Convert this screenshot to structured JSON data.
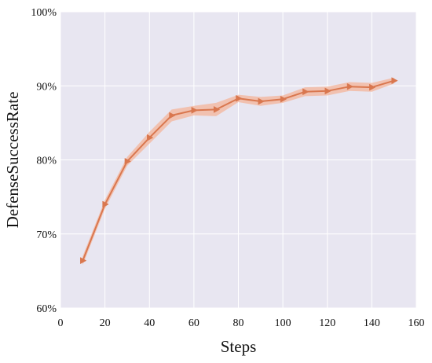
{
  "chart_data": {
    "type": "line",
    "xlabel": "Steps",
    "ylabel": "DefenseSuccessRate",
    "xlim": [
      0,
      160
    ],
    "ylim": [
      60,
      100
    ],
    "x_ticks": [
      0,
      20,
      40,
      60,
      80,
      100,
      120,
      140,
      160
    ],
    "x_tick_labels": [
      "0",
      "20",
      "40",
      "60",
      "80",
      "100",
      "120",
      "140",
      "160"
    ],
    "y_ticks": [
      60,
      70,
      80,
      90,
      100
    ],
    "y_tick_labels": [
      "60%",
      "70%",
      "80%",
      "90%",
      "100%"
    ],
    "grid": true,
    "legend": "none",
    "series": [
      {
        "x": [
          10,
          20,
          30,
          40,
          50,
          60,
          70,
          80,
          90,
          100,
          110,
          120,
          130,
          140,
          150
        ],
        "values": [
          66.4,
          74.0,
          79.8,
          83.0,
          86.0,
          86.7,
          86.8,
          88.3,
          87.9,
          88.2,
          89.2,
          89.3,
          89.9,
          89.8,
          90.7
        ],
        "lower": [
          65.8,
          73.4,
          79.2,
          82.2,
          85.2,
          86.0,
          85.9,
          87.8,
          87.3,
          87.7,
          88.6,
          88.7,
          89.3,
          89.2,
          90.3
        ],
        "upper": [
          67.0,
          74.6,
          80.4,
          83.8,
          86.8,
          87.3,
          87.7,
          88.8,
          88.5,
          88.7,
          89.8,
          89.9,
          90.5,
          90.4,
          91.1
        ],
        "marker": "triangle-right",
        "color": "#d9774f",
        "band_color": "#f4b49a"
      }
    ],
    "colors": {
      "plot_background": "#e8e6f1",
      "grid": "#ffffff"
    }
  }
}
